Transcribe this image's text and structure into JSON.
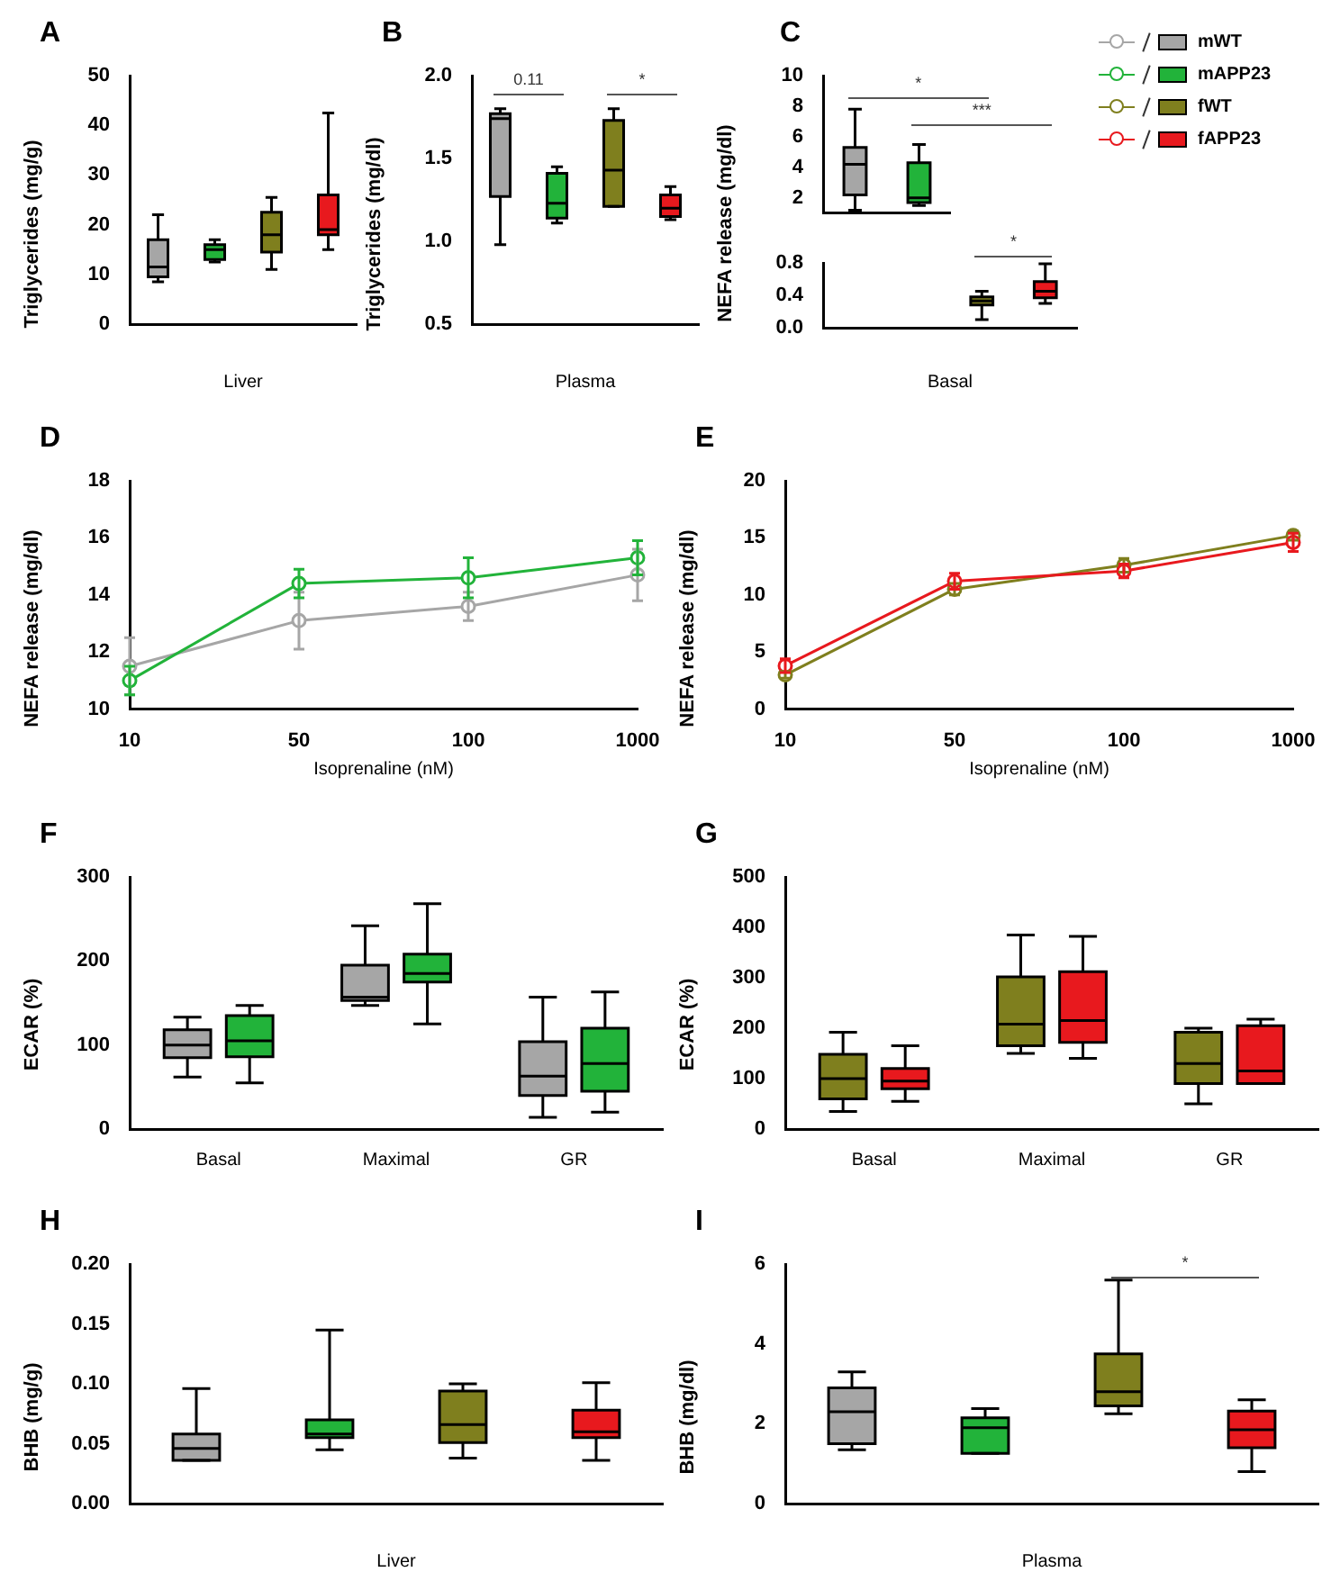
{
  "chart_data": [
    {
      "type": "box",
      "title": "A",
      "xlabel": "Liver",
      "ylabel": "Triglycerides (mg/g)",
      "categories": [
        null,
        null,
        null,
        null
      ],
      "ylim": [
        0,
        50
      ],
      "yticks": [
        0,
        10,
        20,
        30,
        40,
        50
      ],
      "series": [
        {
          "color": "#a6a6a6",
          "boxes": [
            {
              "low": 8.5,
              "q1": 9.5,
              "median": 11.5,
              "q3": 17,
              "high": 22
            },
            null,
            null,
            null
          ]
        },
        {
          "color": "#22b33a",
          "boxes": [
            null,
            {
              "low": 12.5,
              "q1": 13,
              "median": 15,
              "q3": 16,
              "high": 17
            },
            null,
            null
          ]
        },
        {
          "color": "#7f7f1e",
          "boxes": [
            null,
            null,
            {
              "low": 11,
              "q1": 14.5,
              "median": 18,
              "q3": 22.5,
              "high": 25.5
            },
            null
          ]
        },
        {
          "color": "#e8191e",
          "boxes": [
            null,
            null,
            null,
            {
              "low": 15,
              "q1": 18,
              "median": 19,
              "q3": 26,
              "high": 42.5
            }
          ]
        }
      ]
    },
    {
      "type": "box",
      "title": "B",
      "xlabel": "Plasma",
      "ylabel": "Triglycerides (mg/dl)",
      "categories": [
        null,
        null,
        null,
        null
      ],
      "ylim": [
        0.5,
        2.0
      ],
      "yticks": [
        0.5,
        {
          "value": 1,
          "label": "1.0"
        },
        1.5,
        {
          "value": 2,
          "label": "2.0"
        }
      ],
      "annotations": [
        "0.11",
        "*"
      ],
      "series": [
        {
          "color": "#a6a6a6",
          "boxes": [
            {
              "low": 0.98,
              "q1": 1.27,
              "median": 1.74,
              "q3": 1.77,
              "high": 1.8
            },
            null,
            null,
            null
          ]
        },
        {
          "color": "#22b33a",
          "boxes": [
            null,
            {
              "low": 1.11,
              "q1": 1.14,
              "median": 1.23,
              "q3": 1.41,
              "high": 1.45
            },
            null,
            null
          ]
        },
        {
          "color": "#7f7f1e",
          "boxes": [
            null,
            null,
            {
              "low": 1.21,
              "q1": 1.21,
              "median": 1.43,
              "q3": 1.73,
              "high": 1.8
            },
            null
          ]
        },
        {
          "color": "#e8191e",
          "boxes": [
            null,
            null,
            null,
            {
              "low": 1.13,
              "q1": 1.15,
              "median": 1.2,
              "q3": 1.28,
              "high": 1.33
            }
          ]
        }
      ]
    },
    {
      "type": "box",
      "title": "C",
      "categories": [
        null,
        null
      ],
      "ylim": [
        1,
        10
      ],
      "yticks": [
        2,
        4,
        6,
        8,
        10
      ],
      "tick_labels": "y",
      "legend": "right",
      "series": [
        {
          "name": "mWT",
          "color": "#a6a6a6",
          "boxes": [
            {
              "low": 1.2,
              "q1": 2.2,
              "median": 4.2,
              "q3": 5.3,
              "high": 7.8
            },
            null
          ]
        },
        {
          "name": "mAPP23",
          "color": "#22b33a",
          "boxes": [
            null,
            {
              "low": 1.5,
              "q1": 1.7,
              "median": 2.0,
              "q3": 4.3,
              "high": 5.5
            }
          ]
        }
      ]
    },
    {
      "type": "box",
      "xlabel": "Basal",
      "ylabel": "NEFA release (mg/dl)",
      "categories": [
        null,
        null,
        null,
        null
      ],
      "ylim": [
        0,
        0.8
      ],
      "yticks": [
        {
          "value": 0,
          "label": "0.0"
        },
        0.4,
        0.8
      ],
      "legend": "right",
      "annotations": [
        "*",
        "***",
        "*"
      ],
      "series": [
        {
          "name": "fWT",
          "color": "#7f7f1e",
          "boxes": [
            null,
            null,
            {
              "low": 0.1,
              "q1": 0.28,
              "median": 0.33,
              "q3": 0.38,
              "high": 0.45
            },
            null
          ]
        },
        {
          "name": "fAPP23",
          "color": "#e8191e",
          "boxes": [
            null,
            null,
            null,
            {
              "low": 0.3,
              "q1": 0.37,
              "median": 0.45,
              "q3": 0.57,
              "high": 0.79
            }
          ]
        }
      ]
    },
    {
      "type": "line",
      "title": "D",
      "xlabel": "Isoprenaline (nM)",
      "ylabel": "NEFA release (mg/dl)",
      "categories": [
        "10",
        "50",
        "100",
        "1000"
      ],
      "ylim": [
        10,
        18
      ],
      "yticks": [
        10,
        12,
        14,
        16,
        18
      ],
      "marker": "circle",
      "series": [
        {
          "color": "#a6a6a6",
          "values": [
            11.5,
            13.1,
            13.6,
            14.7
          ],
          "errors": [
            1.0,
            1.0,
            0.5,
            0.9
          ]
        },
        {
          "color": "#22b33a",
          "values": [
            11.0,
            14.4,
            14.6,
            15.3
          ],
          "errors": [
            0.5,
            0.5,
            0.7,
            0.6
          ]
        }
      ]
    },
    {
      "type": "line",
      "title": "E",
      "xlabel": "Isoprenaline (nM)",
      "ylabel": "NEFA release (mg/dl)",
      "categories": [
        "10",
        "50",
        "100",
        "1000"
      ],
      "ylim": [
        0,
        20
      ],
      "yticks": [
        0,
        5,
        10,
        15,
        20
      ],
      "marker": "circle",
      "series": [
        {
          "color": "#7f7f1e",
          "values": [
            3.0,
            10.5,
            12.6,
            15.2
          ],
          "errors": [
            0.3,
            0.5,
            0.6,
            0.4
          ]
        },
        {
          "color": "#e8191e",
          "values": [
            3.8,
            11.2,
            12.1,
            14.6
          ],
          "errors": [
            0.6,
            0.7,
            0.6,
            0.8
          ]
        }
      ]
    },
    {
      "type": "box",
      "title": "F",
      "ylabel": "ECAR (%)",
      "categories": [
        "Basal",
        "Maximal",
        "GR"
      ],
      "ylim": [
        0,
        300
      ],
      "yticks": [
        0,
        100,
        200,
        300
      ],
      "series": [
        {
          "color": "#a6a6a6",
          "boxes": [
            {
              "low": 62,
              "q1": 85,
              "median": 100,
              "q3": 118,
              "high": 133
            },
            {
              "low": 147,
              "q1": 153,
              "median": 157,
              "q3": 195,
              "high": 242
            },
            {
              "low": 14,
              "q1": 40,
              "median": 63,
              "q3": 104,
              "high": 157
            }
          ]
        },
        {
          "color": "#22b33a",
          "boxes": [
            {
              "low": 55,
              "q1": 86,
              "median": 105,
              "q3": 135,
              "high": 147
            },
            {
              "low": 125,
              "q1": 175,
              "median": 185,
              "q3": 208,
              "high": 268
            },
            {
              "low": 20,
              "q1": 45,
              "median": 78,
              "q3": 120,
              "high": 163
            }
          ]
        }
      ]
    },
    {
      "type": "box",
      "title": "G",
      "ylabel": "ECAR (%)",
      "categories": [
        "Basal",
        "Maximal",
        "GR"
      ],
      "ylim": [
        0,
        500
      ],
      "yticks": [
        0,
        100,
        200,
        300,
        400,
        500
      ],
      "series": [
        {
          "color": "#7f7f1e",
          "boxes": [
            {
              "low": 35,
              "q1": 60,
              "median": 100,
              "q3": 148,
              "high": 192
            },
            {
              "low": 150,
              "q1": 165,
              "median": 208,
              "q3": 302,
              "high": 385
            },
            {
              "low": 50,
              "q1": 90,
              "median": 130,
              "q3": 192,
              "high": 200
            }
          ]
        },
        {
          "color": "#e8191e",
          "boxes": [
            {
              "low": 55,
              "q1": 80,
              "median": 95,
              "q3": 120,
              "high": 165
            },
            {
              "low": 140,
              "q1": 172,
              "median": 215,
              "q3": 312,
              "high": 382
            },
            {
              "low": 90,
              "q1": 90,
              "median": 115,
              "q3": 205,
              "high": 218
            }
          ]
        }
      ]
    },
    {
      "type": "box",
      "title": "H",
      "xlabel": "Liver",
      "ylabel": "BHB (mg/g)",
      "categories": [
        null,
        null,
        null,
        null
      ],
      "ylim": [
        0,
        0.2
      ],
      "yticks": [
        {
          "value": 0,
          "label": "0.00"
        },
        {
          "value": 0.05,
          "label": "0.05"
        },
        {
          "value": 0.1,
          "label": "0.10"
        },
        {
          "value": 0.15,
          "label": "0.15"
        },
        {
          "value": 0.2,
          "label": "0.20"
        }
      ],
      "series": [
        {
          "color": "#a6a6a6",
          "boxes": [
            {
              "low": 0.036,
              "q1": 0.036,
              "median": 0.046,
              "q3": 0.058,
              "high": 0.096
            },
            null,
            null,
            null
          ]
        },
        {
          "color": "#22b33a",
          "boxes": [
            null,
            {
              "low": 0.045,
              "q1": 0.055,
              "median": 0.058,
              "q3": 0.07,
              "high": 0.145
            },
            null,
            null
          ]
        },
        {
          "color": "#7f7f1e",
          "boxes": [
            null,
            null,
            {
              "low": 0.038,
              "q1": 0.051,
              "median": 0.066,
              "q3": 0.094,
              "high": 0.1
            },
            null
          ]
        },
        {
          "color": "#e8191e",
          "boxes": [
            null,
            null,
            null,
            {
              "low": 0.036,
              "q1": 0.055,
              "median": 0.06,
              "q3": 0.078,
              "high": 0.101
            }
          ]
        }
      ]
    },
    {
      "type": "box",
      "title": "I",
      "xlabel": "Plasma",
      "ylabel": "BHB (mg/dl)",
      "categories": [
        null,
        null,
        null,
        null
      ],
      "ylim": [
        0,
        6
      ],
      "yticks": [
        0,
        2,
        4,
        6
      ],
      "annotations": [
        "*"
      ],
      "series": [
        {
          "color": "#a6a6a6",
          "boxes": [
            {
              "low": 1.35,
              "q1": 1.5,
              "median": 2.3,
              "q3": 2.9,
              "high": 3.3
            },
            null,
            null,
            null
          ]
        },
        {
          "color": "#22b33a",
          "boxes": [
            null,
            {
              "low": 1.26,
              "q1": 1.26,
              "median": 1.9,
              "q3": 2.15,
              "high": 2.38
            },
            null,
            null
          ]
        },
        {
          "color": "#7f7f1e",
          "boxes": [
            null,
            null,
            {
              "low": 2.25,
              "q1": 2.45,
              "median": 2.8,
              "q3": 3.75,
              "high": 5.6
            },
            null
          ]
        },
        {
          "color": "#e8191e",
          "boxes": [
            null,
            null,
            null,
            {
              "low": 0.8,
              "q1": 1.4,
              "median": 1.85,
              "q3": 2.32,
              "high": 2.6
            }
          ]
        }
      ]
    }
  ]
}
